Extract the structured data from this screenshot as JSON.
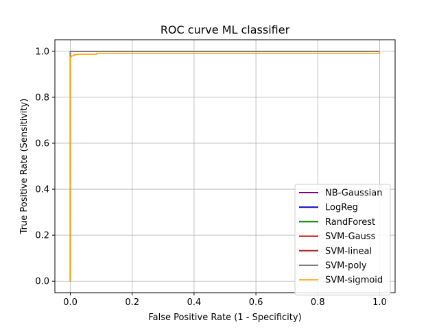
{
  "chart_data": {
    "type": "line",
    "title": "ROC curve ML classifier",
    "xlabel": "False Positive Rate (1 - Specificity)",
    "ylabel": "True Positive Rate (Sensitivity)",
    "xlim": [
      -0.05,
      1.05
    ],
    "ylim": [
      -0.05,
      1.05
    ],
    "xticks": [
      0.0,
      0.2,
      0.4,
      0.6,
      0.8,
      1.0
    ],
    "yticks": [
      0.0,
      0.2,
      0.4,
      0.6,
      0.8,
      1.0
    ],
    "grid": true,
    "legend_position": "lower right",
    "series": [
      {
        "name": "NB-Gaussian",
        "color": "#800080",
        "x": [
          0,
          0,
          1
        ],
        "y": [
          0,
          1,
          1
        ]
      },
      {
        "name": "LogReg",
        "color": "#0000cc",
        "x": [
          0,
          0,
          1
        ],
        "y": [
          0,
          1,
          1
        ]
      },
      {
        "name": "RandForest",
        "color": "#008000",
        "x": [
          0,
          0,
          1
        ],
        "y": [
          0,
          1,
          1
        ]
      },
      {
        "name": "SVM-Gauss",
        "color": "#dd0000",
        "x": [
          0,
          0,
          1
        ],
        "y": [
          0,
          1,
          1
        ]
      },
      {
        "name": "SVM-lineal",
        "color": "#b22222",
        "x": [
          0,
          0,
          1
        ],
        "y": [
          0,
          1,
          1
        ]
      },
      {
        "name": "SVM-poly",
        "color": "#808080",
        "x": [
          0,
          0,
          1
        ],
        "y": [
          0,
          1,
          1
        ]
      },
      {
        "name": "SVM-sigmoid",
        "color": "#ffa500",
        "x": [
          0,
          0,
          0.003,
          0.003,
          0.012,
          0.012,
          0.022,
          0.022,
          0.085,
          0.085,
          1.0,
          1.0
        ],
        "y": [
          0,
          0.975,
          0.975,
          0.98,
          0.98,
          0.985,
          0.985,
          0.987,
          0.987,
          0.99,
          0.99,
          1.0
        ]
      }
    ]
  }
}
